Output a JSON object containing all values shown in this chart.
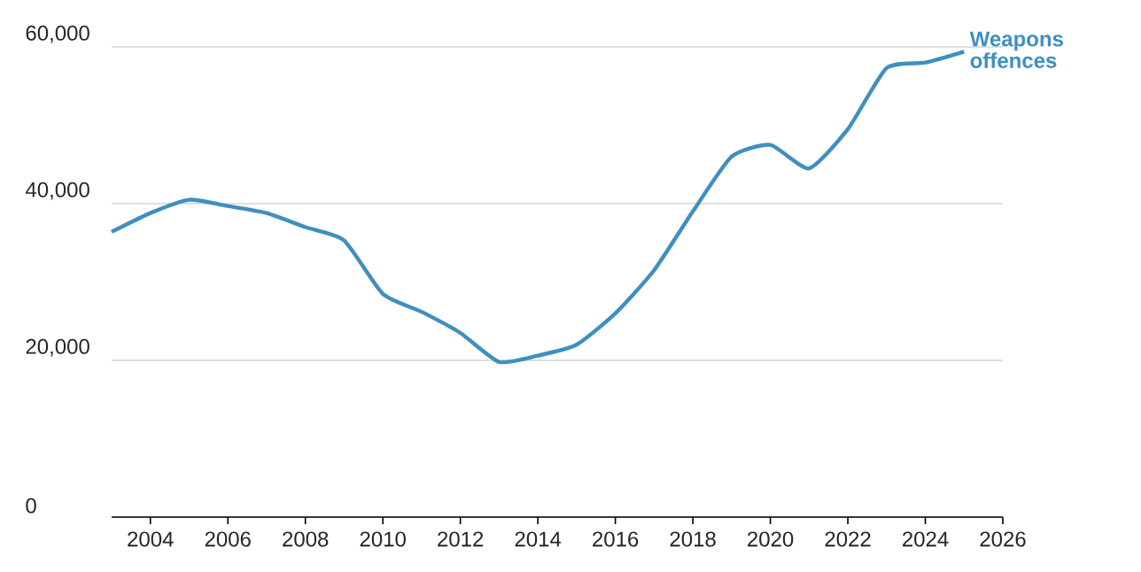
{
  "chart_data": {
    "type": "line",
    "x": [
      2003,
      2004,
      2005,
      2006,
      2007,
      2008,
      2009,
      2010,
      2011,
      2012,
      2013,
      2014,
      2015,
      2016,
      2017,
      2018,
      2019,
      2020,
      2021,
      2022,
      2023,
      2024,
      2025
    ],
    "series": [
      {
        "name": "Weapons offences",
        "color": "#3f8fbf",
        "values": [
          36400,
          38800,
          40500,
          39700,
          38800,
          37000,
          35300,
          28500,
          26200,
          23500,
          19800,
          20600,
          22000,
          26000,
          31500,
          39000,
          46000,
          47500,
          44500,
          49500,
          57300,
          58000,
          59400
        ]
      }
    ],
    "xlim": [
      2003,
      2026
    ],
    "xticks": [
      2004,
      2006,
      2008,
      2010,
      2012,
      2014,
      2016,
      2018,
      2020,
      2022,
      2024,
      2026
    ],
    "ylim": [
      0,
      60000
    ],
    "yticks": [
      0,
      {
        "value": 20000,
        "label": "20,000"
      },
      {
        "value": 40000,
        "label": "40,000"
      },
      {
        "value": 60000,
        "label": "60,000"
      }
    ],
    "grid": "y",
    "marker": "none",
    "line_style": "solid"
  }
}
